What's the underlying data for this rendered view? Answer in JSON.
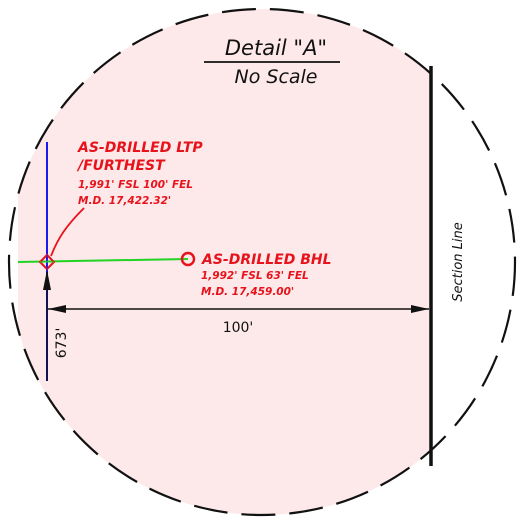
{
  "detail": {
    "title": "Detail \"A\"",
    "subtitle": "No Scale"
  },
  "ltp": {
    "line1": "AS-DRILLED LTP",
    "line2": "/FURTHEST",
    "line3": "1,991' FSL 100' FEL",
    "line4": "M.D. 17,422.32'"
  },
  "bhl": {
    "line1": "AS-DRILLED BHL",
    "line2": "1,992' FSL 63' FEL",
    "line3": "M.D. 17,459.00'"
  },
  "dimensions": {
    "horizontal": "100'",
    "vertical": "673'"
  },
  "section_line_label": "Section Line",
  "colors": {
    "background_fill": "#fde8ea",
    "border": "#111111",
    "annotation_red": "#e8121a",
    "well_path_green": "#22d422",
    "lease_line_blue": "#1a1aee"
  }
}
